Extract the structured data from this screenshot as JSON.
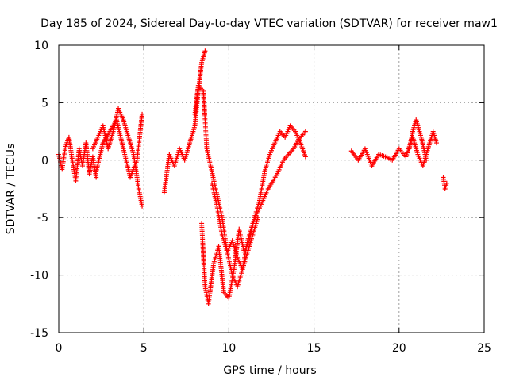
{
  "chart_data": {
    "type": "scatter",
    "title": "Day 185 of 2024, Sidereal Day-to-day VTEC variation (SDTVAR) for receiver maw1",
    "xlabel": "GPS time / hours",
    "ylabel": "SDTVAR / TECUs",
    "xlim": [
      0,
      25
    ],
    "ylim": [
      -15,
      10
    ],
    "x_ticks": [
      0,
      5,
      10,
      15,
      20,
      25
    ],
    "y_ticks": [
      -15,
      -10,
      -5,
      0,
      5,
      10
    ],
    "grid": true,
    "marker": "plus",
    "color": "#ff0000",
    "series": [
      {
        "name": "SDTVAR",
        "segments": [
          {
            "x": [
              0.0,
              0.2,
              0.4,
              0.6,
              0.8,
              1.0,
              1.2,
              1.4,
              1.6,
              1.8,
              2.0,
              2.2
            ],
            "y": [
              0.5,
              -0.8,
              1.2,
              2.0,
              0.0,
              -1.8,
              1.0,
              -0.5,
              1.5,
              -1.2,
              0.3,
              -1.5
            ]
          },
          {
            "x": [
              2.0,
              2.3,
              2.6,
              2.9,
              3.2,
              3.5,
              3.8,
              4.1,
              4.4,
              4.7,
              4.9
            ],
            "y": [
              1.0,
              2.0,
              3.0,
              1.0,
              2.5,
              4.5,
              3.5,
              2.0,
              0.5,
              -2.5,
              -4.0
            ]
          },
          {
            "x": [
              2.2,
              2.6,
              3.0,
              3.4,
              3.8,
              4.2,
              4.6,
              4.9
            ],
            "y": [
              -1.0,
              1.5,
              2.5,
              3.5,
              1.0,
              -1.5,
              0.0,
              4.0
            ]
          },
          {
            "x": [
              6.2,
              6.5,
              6.8,
              7.1,
              7.4,
              7.7,
              8.0,
              8.2,
              8.4,
              8.6
            ],
            "y": [
              -2.8,
              0.5,
              -0.5,
              1.0,
              0.0,
              1.5,
              3.0,
              6.0,
              8.5,
              9.5
            ]
          },
          {
            "x": [
              8.0,
              8.2,
              8.5,
              8.7,
              9.0,
              9.3,
              9.6,
              9.9,
              10.2,
              10.5,
              10.8,
              11.1,
              11.4,
              11.7,
              12.0,
              12.3,
              12.6,
              12.9,
              13.2,
              13.5,
              13.8,
              14.1,
              14.5
            ],
            "y": [
              4.0,
              6.5,
              6.0,
              1.0,
              -1.0,
              -3.0,
              -5.0,
              -8.0,
              -10.0,
              -11.0,
              -9.5,
              -7.0,
              -5.5,
              -4.5,
              -3.5,
              -2.5,
              -1.8,
              -1.0,
              0.0,
              0.5,
              1.0,
              1.8,
              2.5
            ]
          },
          {
            "x": [
              8.4,
              8.6,
              8.8,
              9.1,
              9.4,
              9.7,
              10.0,
              10.3,
              10.6,
              10.9,
              11.2,
              11.5,
              11.8,
              12.1,
              12.4,
              12.7,
              13.0,
              13.3,
              13.6,
              13.9,
              14.2,
              14.5
            ],
            "y": [
              -5.5,
              -11.0,
              -12.5,
              -9.0,
              -7.5,
              -11.5,
              -12.0,
              -9.5,
              -6.0,
              -8.0,
              -7.0,
              -5.0,
              -3.5,
              -1.0,
              0.5,
              1.5,
              2.5,
              2.0,
              3.0,
              2.5,
              1.5,
              0.3
            ]
          },
          {
            "x": [
              9.0,
              9.3,
              9.6,
              9.9,
              10.2,
              10.5,
              10.8,
              11.1,
              11.4,
              11.7
            ],
            "y": [
              -2.0,
              -4.0,
              -6.5,
              -8.0,
              -7.0,
              -8.5,
              -9.5,
              -8.0,
              -6.5,
              -5.0
            ]
          },
          {
            "x": [
              17.2,
              17.6,
              18.0,
              18.4,
              18.8,
              19.2,
              19.6,
              20.0,
              20.4,
              20.8,
              21.1,
              21.4,
              21.7,
              22.0,
              22.2
            ],
            "y": [
              0.8,
              0.0,
              1.0,
              -0.5,
              0.5,
              0.3,
              0.0,
              1.0,
              0.3,
              2.0,
              0.5,
              -0.5,
              1.0,
              2.5,
              1.5
            ]
          },
          {
            "x": [
              20.6,
              20.8,
              21.0,
              21.3,
              21.6
            ],
            "y": [
              1.0,
              2.5,
              3.5,
              2.0,
              0.0
            ]
          },
          {
            "x": [
              22.6,
              22.7,
              22.8
            ],
            "y": [
              -1.5,
              -2.5,
              -2.0
            ]
          }
        ]
      }
    ]
  }
}
